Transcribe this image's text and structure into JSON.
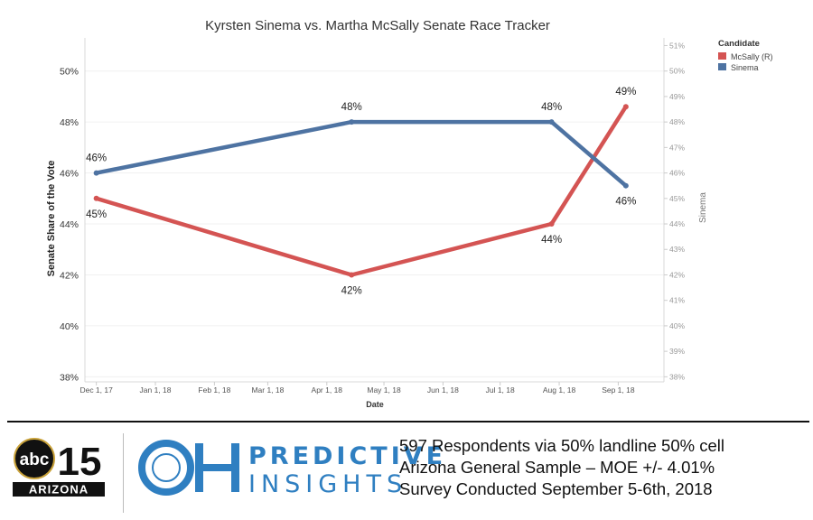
{
  "chart_data": {
    "type": "line",
    "title": "Kyrsten Sinema vs. Martha McSally Senate Race Tracker",
    "xlabel": "Date",
    "ylabel": "Senate Share of the Vote",
    "ylabel_right": "Sinema",
    "x_ticks": [
      "Dec 1, 17",
      "Jan 1, 18",
      "Feb 1, 18",
      "Mar 1, 18",
      "Apr 1, 18",
      "May 1, 18",
      "Jun 1, 18",
      "Jul 1, 18",
      "Aug 1, 18",
      "Sep 1, 18"
    ],
    "x_tick_dates": [
      "2017-12-01",
      "2018-01-01",
      "2018-02-01",
      "2018-03-01",
      "2018-04-01",
      "2018-05-01",
      "2018-06-01",
      "2018-07-01",
      "2018-08-01",
      "2018-09-01"
    ],
    "xlim": [
      "2017-11-25",
      "2018-09-25"
    ],
    "y_ticks_left": [
      "38%",
      "40%",
      "42%",
      "44%",
      "46%",
      "48%",
      "50%"
    ],
    "y_ticks_right": [
      "38%",
      "39%",
      "40%",
      "41%",
      "42%",
      "43%",
      "44%",
      "45%",
      "46%",
      "47%",
      "48%",
      "49%",
      "50%",
      "51%"
    ],
    "ylim": [
      37.8,
      51.3
    ],
    "grid": true,
    "legend_title": "Candidate",
    "legend_position": "top-right",
    "series": [
      {
        "name": "McSally (R)",
        "color": "#d45453",
        "points": [
          {
            "x": "2017-12-01",
            "y": 45,
            "label": "45%",
            "label_pos": "below"
          },
          {
            "x": "2018-04-14",
            "y": 42,
            "label": "42%",
            "label_pos": "below"
          },
          {
            "x": "2018-07-28",
            "y": 44,
            "label": "44%",
            "label_pos": "below"
          },
          {
            "x": "2018-09-05",
            "y": 48.6,
            "label": "49%",
            "label_pos": "above"
          }
        ]
      },
      {
        "name": "Sinema",
        "color": "#4e73a2",
        "points": [
          {
            "x": "2017-12-01",
            "y": 46,
            "label": "46%",
            "label_pos": "above"
          },
          {
            "x": "2018-04-14",
            "y": 48,
            "label": "48%",
            "label_pos": "above"
          },
          {
            "x": "2018-07-28",
            "y": 48,
            "label": "48%",
            "label_pos": "above"
          },
          {
            "x": "2018-09-05",
            "y": 45.5,
            "label": "46%",
            "label_pos": "below"
          }
        ]
      }
    ]
  },
  "footer": {
    "abc_number": "15",
    "abc_network": "abc",
    "abc_region": "ARIZONA",
    "oh_letters": "OH",
    "brand_line1": "PREDICTIVE",
    "brand_line2": "INSIGHTS",
    "survey_lines": [
      "597 Respondents via 50% landline 50% cell",
      "Arizona General Sample – MOE +/- 4.01%",
      "Survey Conducted September 5-6th, 2018"
    ],
    "brand_color": "#2f7fc1"
  }
}
